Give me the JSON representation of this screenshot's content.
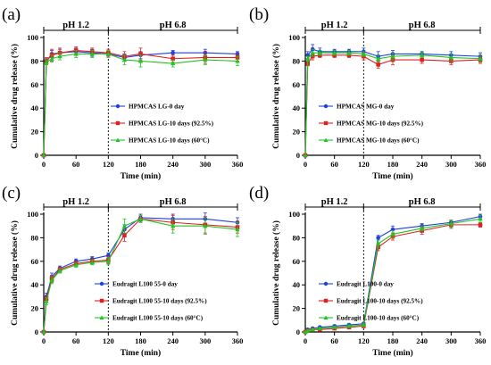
{
  "figure": {
    "panel_labels": [
      "(a)",
      "(b)",
      "(c)",
      "(d)"
    ],
    "phase_labels": [
      "pH 1.2",
      "pH 6.8"
    ]
  },
  "chart_data": [
    {
      "type": "line",
      "panel": "(a)",
      "xlabel": "Time (min)",
      "ylabel": "Cumulative drug release (%)",
      "xlim": [
        0,
        360
      ],
      "ylim": [
        0,
        100
      ],
      "xticks": [
        0,
        60,
        120,
        180,
        240,
        300,
        360
      ],
      "yticks": [
        0,
        20,
        40,
        60,
        80,
        100
      ],
      "phase_boundary": 120,
      "phase_labels": [
        "pH 1.2",
        "pH 6.8"
      ],
      "legend_position": "center-right",
      "x": [
        0,
        5,
        15,
        30,
        60,
        90,
        120,
        150,
        180,
        240,
        300,
        360
      ],
      "series": [
        {
          "name": "HPMCAS LG-0 day",
          "color": "#1f3fe0",
          "marker": "circle",
          "values": [
            0,
            80,
            86,
            87,
            88,
            87,
            86,
            83,
            85,
            87,
            87,
            86
          ],
          "errors": [
            0,
            2,
            3,
            3,
            3,
            3,
            2,
            3,
            3,
            2,
            3,
            2
          ]
        },
        {
          "name": "HPMCAS LG-10 days (92.5%)",
          "color": "#e02020",
          "marker": "square",
          "values": [
            0,
            80,
            85,
            87,
            89,
            88,
            87,
            84,
            86,
            82,
            83,
            83
          ],
          "errors": [
            0,
            3,
            5,
            4,
            3,
            3,
            3,
            4,
            5,
            3,
            5,
            3
          ]
        },
        {
          "name": "HPMCAS LG-10 days (60°C)",
          "color": "#22c422",
          "marker": "triangle",
          "values": [
            0,
            79,
            82,
            84,
            86,
            86,
            86,
            81,
            80,
            78,
            81,
            80
          ],
          "errors": [
            0,
            2,
            3,
            3,
            3,
            3,
            3,
            4,
            5,
            3,
            4,
            4
          ]
        }
      ]
    },
    {
      "type": "line",
      "panel": "(b)",
      "xlabel": "Time (min)",
      "ylabel": "Cumulative drug release (%)",
      "xlim": [
        0,
        360
      ],
      "ylim": [
        0,
        100
      ],
      "xticks": [
        0,
        60,
        120,
        180,
        240,
        300,
        360
      ],
      "yticks": [
        0,
        20,
        40,
        60,
        80,
        100
      ],
      "phase_boundary": 120,
      "phase_labels": [
        "pH 1.2",
        "pH 6.8"
      ],
      "legend_position": "center-right",
      "x": [
        0,
        5,
        15,
        30,
        60,
        90,
        120,
        150,
        180,
        240,
        300,
        360
      ],
      "series": [
        {
          "name": "HPMCAS MG-0 day",
          "color": "#1f3fe0",
          "marker": "circle",
          "values": [
            0,
            85,
            90,
            88,
            88,
            88,
            88,
            84,
            86,
            86,
            85,
            84
          ],
          "errors": [
            0,
            3,
            4,
            3,
            2,
            2,
            3,
            4,
            3,
            2,
            3,
            3
          ]
        },
        {
          "name": "HPMCAS MG-10 days (92.5%)",
          "color": "#e02020",
          "marker": "square",
          "values": [
            0,
            78,
            84,
            85,
            85,
            85,
            84,
            77,
            81,
            81,
            80,
            81
          ],
          "errors": [
            0,
            2,
            3,
            2,
            2,
            2,
            3,
            3,
            4,
            3,
            3,
            3
          ]
        },
        {
          "name": "HPMCAS MG-10 days (60°C)",
          "color": "#22c422",
          "marker": "triangle",
          "values": [
            0,
            82,
            87,
            87,
            87,
            87,
            86,
            82,
            84,
            85,
            83,
            82
          ],
          "errors": [
            0,
            2,
            3,
            2,
            2,
            2,
            2,
            3,
            3,
            2,
            3,
            3
          ]
        }
      ]
    },
    {
      "type": "line",
      "panel": "(c)",
      "xlabel": "Time (min)",
      "ylabel": "Cumulative drug release (%)",
      "xlim": [
        0,
        360
      ],
      "ylim": [
        0,
        100
      ],
      "xticks": [
        0,
        60,
        120,
        180,
        240,
        300,
        360
      ],
      "yticks": [
        0,
        20,
        40,
        60,
        80,
        100
      ],
      "phase_boundary": 120,
      "phase_labels": [
        "pH 1.2",
        "pH 6.8"
      ],
      "legend_position": "bottom-right",
      "x": [
        0,
        5,
        15,
        30,
        60,
        90,
        120,
        150,
        180,
        240,
        300,
        360
      ],
      "series": [
        {
          "name": "Eudragit L100 55-0 day",
          "color": "#1f3fe0",
          "marker": "circle",
          "values": [
            0,
            30,
            47,
            54,
            60,
            62,
            65,
            87,
            97,
            96,
            96,
            93
          ],
          "errors": [
            0,
            3,
            3,
            2,
            2,
            2,
            2,
            4,
            3,
            4,
            5,
            4
          ]
        },
        {
          "name": "Eudragit L100 55-10 days (92.5%)",
          "color": "#e02020",
          "marker": "square",
          "values": [
            0,
            28,
            45,
            53,
            58,
            60,
            61,
            82,
            96,
            93,
            91,
            89
          ],
          "errors": [
            0,
            3,
            3,
            2,
            2,
            2,
            3,
            5,
            3,
            6,
            7,
            5
          ]
        },
        {
          "name": "Eudragit L100 55-10 days (60°C)",
          "color": "#22c422",
          "marker": "triangle",
          "values": [
            0,
            26,
            44,
            52,
            57,
            59,
            60,
            90,
            96,
            90,
            90,
            87
          ],
          "errors": [
            0,
            3,
            3,
            2,
            2,
            2,
            3,
            6,
            3,
            6,
            7,
            6
          ]
        }
      ]
    },
    {
      "type": "line",
      "panel": "(d)",
      "xlabel": "Time (min)",
      "ylabel": "Cumulative drug release (%)",
      "xlim": [
        0,
        360
      ],
      "ylim": [
        0,
        100
      ],
      "xticks": [
        0,
        60,
        120,
        180,
        240,
        300,
        360
      ],
      "yticks": [
        0,
        20,
        40,
        60,
        80,
        100
      ],
      "phase_boundary": 120,
      "phase_labels": [
        "pH 1.2",
        "pH 6.8"
      ],
      "legend_position": "bottom-right",
      "x": [
        0,
        5,
        15,
        30,
        60,
        90,
        120,
        150,
        180,
        240,
        300,
        360
      ],
      "series": [
        {
          "name": "Eudragit L100-0 day",
          "color": "#1f3fe0",
          "marker": "circle",
          "values": [
            0,
            2,
            3,
            4,
            5,
            6,
            7,
            80,
            87,
            90,
            93,
            98
          ],
          "errors": [
            0,
            1,
            1,
            1,
            1,
            1,
            1,
            2,
            3,
            2,
            2,
            2
          ]
        },
        {
          "name": "Eudragit L100-10 days (92.5%)",
          "color": "#e02020",
          "marker": "square",
          "values": [
            0,
            1,
            2,
            2,
            3,
            4,
            5,
            72,
            81,
            86,
            91,
            91
          ],
          "errors": [
            0,
            1,
            1,
            1,
            1,
            1,
            1,
            3,
            3,
            3,
            3,
            2
          ]
        },
        {
          "name": "Eudragit L100-10 days (60°C)",
          "color": "#22c422",
          "marker": "triangle",
          "values": [
            0,
            1,
            2,
            3,
            4,
            5,
            6,
            75,
            83,
            88,
            92,
            96
          ],
          "errors": [
            0,
            1,
            1,
            1,
            1,
            1,
            1,
            3,
            3,
            2,
            3,
            3
          ]
        }
      ]
    }
  ]
}
